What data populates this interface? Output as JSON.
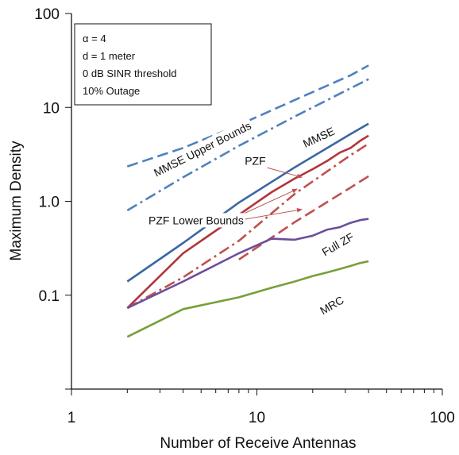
{
  "chart_data": {
    "type": "line",
    "xlabel": "Number of Receive Antennas",
    "ylabel": "Maximum Density",
    "x_scale": "log",
    "y_scale": "log",
    "xlim": [
      1,
      100
    ],
    "ylim": [
      0.01,
      100
    ],
    "x_ticks": [
      {
        "value": 1,
        "label": "1"
      },
      {
        "value": 10,
        "label": "10"
      },
      {
        "value": 100,
        "label": "100"
      }
    ],
    "y_ticks": [
      {
        "value": 0.1,
        "label": "0.1"
      },
      {
        "value": 1,
        "label": "1.0"
      },
      {
        "value": 10,
        "label": "10"
      },
      {
        "value": 100,
        "label": "100"
      }
    ],
    "grid": false,
    "info_box": [
      "α = 4",
      "d = 1 meter",
      "0 dB SINR threshold",
      "10% Outage"
    ],
    "series": [
      {
        "name": "MMSE Upper Bounds",
        "color": "#4f81bd",
        "dash": "dash",
        "x": [
          2,
          4,
          8,
          16,
          32,
          40
        ],
        "y": [
          2.35,
          3.7,
          6.5,
          12,
          22,
          28
        ]
      },
      {
        "name": "MMSE Upper Bounds",
        "color": "#4f81bd",
        "dash": "dashdot",
        "x": [
          2,
          4,
          8,
          16,
          32,
          40
        ],
        "y": [
          0.8,
          1.8,
          3.9,
          8,
          16,
          20
        ]
      },
      {
        "name": "MMSE",
        "color": "#3a67a3",
        "dash": "solid",
        "x": [
          2,
          4,
          8,
          16,
          32,
          40
        ],
        "y": [
          0.14,
          0.36,
          0.97,
          2.3,
          5.2,
          6.7
        ]
      },
      {
        "name": "PZF",
        "color": "#b0363a",
        "dash": "solid",
        "x": [
          2,
          4,
          8,
          12,
          16,
          20,
          24,
          28,
          32,
          36,
          40
        ],
        "y": [
          0.073,
          0.28,
          0.72,
          1.25,
          1.75,
          2.2,
          2.7,
          3.3,
          3.7,
          4.4,
          5.0
        ]
      },
      {
        "name": "PZF Lower Bounds",
        "color": "#c0504d",
        "dash": "dashdot",
        "x": [
          2,
          4,
          8,
          16,
          32,
          40
        ],
        "y": [
          0.073,
          0.155,
          0.38,
          1.2,
          3.1,
          4.1
        ]
      },
      {
        "name": "PZF Lower Bounds",
        "color": "#c0504d",
        "dash": "dash",
        "x": [
          8,
          16,
          32,
          40
        ],
        "y": [
          0.24,
          0.6,
          1.4,
          1.85
        ]
      },
      {
        "name": "Full ZF",
        "color": "#6b4e9b",
        "dash": "solid",
        "x": [
          2,
          4,
          8,
          12,
          16,
          20,
          24,
          28,
          32,
          36,
          40
        ],
        "y": [
          0.073,
          0.14,
          0.28,
          0.4,
          0.39,
          0.43,
          0.5,
          0.53,
          0.59,
          0.63,
          0.65
        ]
      },
      {
        "name": "MRC",
        "color": "#77a03a",
        "dash": "solid",
        "x": [
          2,
          4,
          8,
          12,
          16,
          20,
          24,
          28,
          32,
          36,
          40
        ],
        "y": [
          0.036,
          0.071,
          0.095,
          0.12,
          0.14,
          0.16,
          0.175,
          0.19,
          0.205,
          0.22,
          0.23
        ]
      }
    ],
    "annotations": [
      {
        "text": "MMSE Upper Bounds",
        "x": 5.2,
        "y": 3.3,
        "rotation": -27
      },
      {
        "text": "MMSE",
        "x": 22,
        "y": 4.4,
        "rotation": -25
      },
      {
        "text": "PZF",
        "x": 9.8,
        "y": 2.45,
        "rotation": 0,
        "arrows": [
          {
            "from": [
              11.2,
              2.3
            ],
            "to": [
              17.5,
              1.8
            ]
          }
        ]
      },
      {
        "text": "PZF Lower Bounds",
        "x": 4.7,
        "y": 0.57,
        "rotation": 0,
        "arrows": [
          {
            "from": [
              7.0,
              0.62
            ],
            "to": [
              16.5,
              1.35
            ]
          },
          {
            "from": [
              7.0,
              0.6
            ],
            "to": [
              17.5,
              0.82
            ]
          }
        ]
      },
      {
        "text": "Full ZF",
        "x": 28,
        "y": 0.32,
        "rotation": -30
      },
      {
        "text": "MRC",
        "x": 26,
        "y": 0.072,
        "rotation": -30
      }
    ],
    "axis_color": "#111111",
    "arrow_color": "#c0504d"
  }
}
